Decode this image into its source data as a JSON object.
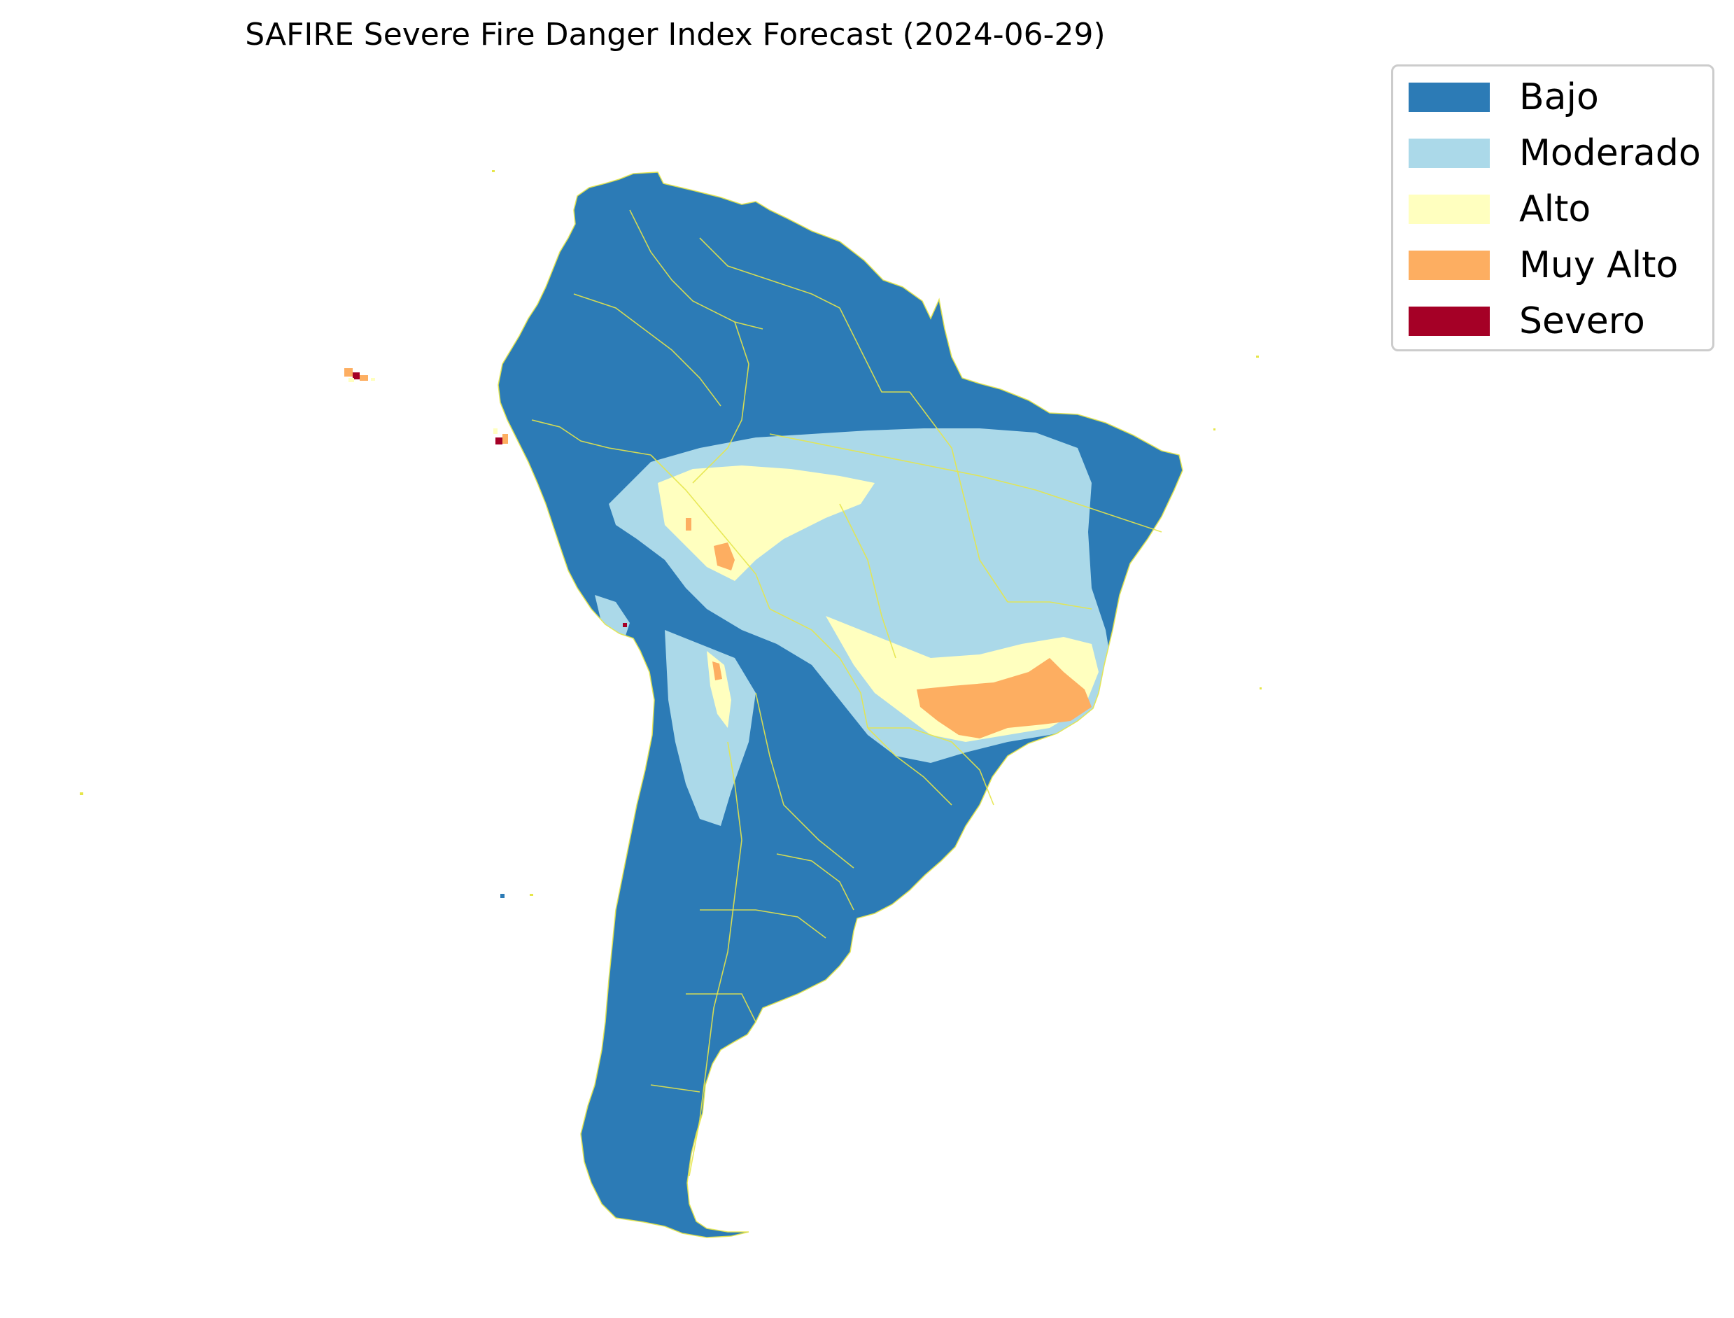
{
  "title": "SAFIRE Severe Fire Danger Index Forecast (2024-06-29)",
  "legend": {
    "items": [
      {
        "label": "Bajo",
        "color": "#2c7bb6"
      },
      {
        "label": "Moderado",
        "color": "#abd9e9"
      },
      {
        "label": "Alto",
        "color": "#ffffbf"
      },
      {
        "label": "Muy Alto",
        "color": "#fdae61"
      },
      {
        "label": "Severo",
        "color": "#a50026"
      }
    ]
  },
  "map": {
    "region": "South America",
    "border_color": "#e6e64a"
  }
}
